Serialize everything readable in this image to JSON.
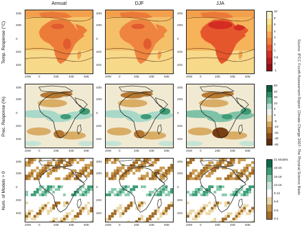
{
  "columns": [
    "Annual",
    "DJF",
    "JJA"
  ],
  "rows": [
    {
      "label": "Temp. Response (°C)",
      "colors": [
        "#f7f3c6",
        "#fbe38a",
        "#fcc96a",
        "#f9a552",
        "#f2813f",
        "#e8562e",
        "#d62f22",
        "#b91b1b",
        "#8f0f14"
      ],
      "ticks": [
        "10",
        "8",
        "6",
        "4",
        "3",
        "2",
        "1",
        "0.5",
        "0",
        "-1"
      ],
      "unit": "(°C)"
    },
    {
      "label": "Prec. Response (%)",
      "colors": [
        "#0a5d3f",
        "#2a8d63",
        "#68b89a",
        "#b6dfd2",
        "#f0f0e8",
        "#f2dcab",
        "#d7a85c",
        "#b7772a",
        "#8a4b17",
        "#5e2c0d"
      ],
      "ticks": [
        "60",
        "40",
        "20",
        "10",
        "5",
        "0",
        "-5",
        "-10",
        "-20",
        "-40",
        "-60"
      ],
      "unit": "(%)"
    },
    {
      "label": "Num. of Models > 0",
      "colors": [
        "#0c6a4a",
        "#3a9c74",
        "#89c9ad",
        "#c9e6d8",
        "#ffffff",
        "#e9d7a6",
        "#c99a4e",
        "#a46b25"
      ],
      "ticks": [
        "21 Models",
        "19-20",
        "16-18",
        "13-15",
        "9-12",
        "6-8",
        "3-5",
        "0-2"
      ],
      "unit": ""
    }
  ],
  "lat_ticks": [
    "40N",
    "20N",
    "0",
    "20S",
    "40S"
  ],
  "lon_ticks": [
    "20W",
    "0",
    "20E",
    "40E",
    "60E"
  ],
  "source_text": "Source: IPCC Fourth Assessment Report: Climate Change 2007: The Physical Science Basis"
}
